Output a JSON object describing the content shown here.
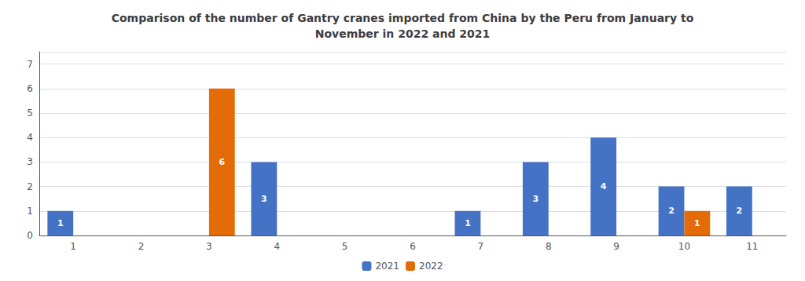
{
  "chart_data": {
    "type": "bar",
    "title": "Comparison of the number of Gantry cranes imported from China by the Peru from January to\nNovember in 2022 and 2021",
    "categories": [
      "1",
      "2",
      "3",
      "4",
      "5",
      "6",
      "7",
      "8",
      "9",
      "10",
      "11"
    ],
    "series": [
      {
        "name": "2021",
        "color": "#4472C4",
        "values": [
          1,
          0,
          0,
          3,
          0,
          0,
          1,
          3,
          4,
          2,
          2
        ]
      },
      {
        "name": "2022",
        "color": "#E36C09",
        "values": [
          0,
          0,
          6,
          0,
          0,
          0,
          0,
          0,
          0,
          1,
          0
        ]
      }
    ],
    "ylim": [
      0,
      7.5
    ],
    "yticks": [
      0,
      1,
      2,
      3,
      4,
      5,
      6,
      7
    ],
    "grid": true,
    "legend": "bottom",
    "data_labels": true
  }
}
